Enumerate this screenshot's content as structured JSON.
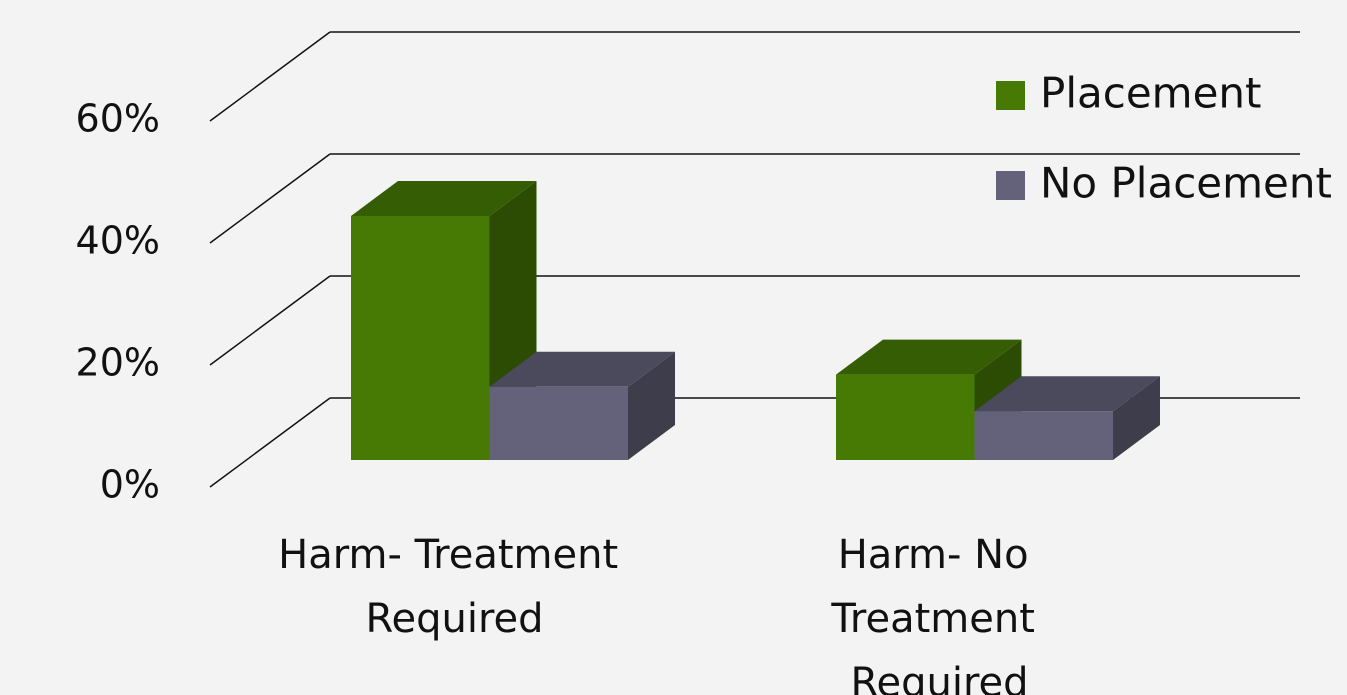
{
  "chart_data": {
    "type": "bar3d",
    "categories": [
      "Harm- Treatment Required",
      "Harm- No Treatment Required"
    ],
    "series": [
      {
        "name": "Placement",
        "color": "#467a04",
        "values": [
          40,
          14
        ]
      },
      {
        "name": "No Placement",
        "color": "#63627a",
        "values": [
          12,
          8
        ]
      }
    ],
    "ylim": [
      0,
      60
    ],
    "yticks": [
      {
        "value": 0,
        "label": "0%"
      },
      {
        "value": 20,
        "label": "20%"
      },
      {
        "value": 40,
        "label": "40%"
      },
      {
        "value": 60,
        "label": "60%"
      }
    ],
    "grid": true,
    "legend": "top-right"
  }
}
